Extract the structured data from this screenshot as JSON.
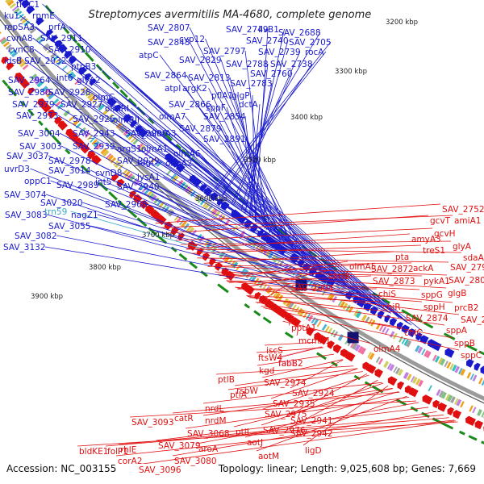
{
  "title": "Streptomyces avermitilis MA-4680, complete genome",
  "footer": {
    "accession": "Accession: NC_003155",
    "stats": "Topology: linear; Length: 9,025,608 bp; Genes: 7,669"
  },
  "kbp_ticks": [
    "3200 kbp",
    "3300 kbp",
    "3400 kbp",
    "3500 kbp",
    "3600 kbp",
    "3700 kbp",
    "3800 kbp",
    "3900 kbp"
  ],
  "colors": {
    "forward": "#1a1acd",
    "reverse": "#e01010",
    "rna": "#3aa8c8",
    "pseudo": "#f2a0c8",
    "ring": "#9a9a9a"
  },
  "labels_top": [
    "thrC1",
    "ku1",
    "rpmE",
    "repSA3",
    "prfA",
    "cvnA8",
    "SAV_2911",
    "cvnC8",
    "SAV_2910",
    "idsB",
    "SAV_2932",
    "ptpB3",
    "int6",
    "SAV_2964",
    "glyA2",
    "SAV_2980",
    "SAV_2928",
    "olmC",
    "SAV_2979",
    "SAV_2927",
    "olmRI",
    "SAV_2973",
    "SAV_2926",
    "olmRII",
    "SAV_3004",
    "SAV_2943",
    "SAV_2900",
    "olmA3",
    "SAV_3003",
    "SAV_2939",
    "argS1",
    "olmA1",
    "SAV_3037",
    "SAV_2978",
    "SAV_2929",
    "olmA6",
    "uvrD3",
    "SAV_3014",
    "cvnD8",
    "tagO",
    "olmA2",
    "int5",
    "lysA1",
    "oppC1",
    "SAV_2989",
    "SAV_2940",
    "SAV_3074",
    "SAV_3020",
    "nagZ1",
    "SAV_2968",
    "SAV_3083",
    "trn59",
    "SAV_3055",
    "SAV_3082",
    "SAV_3132",
    "SAV_2807",
    "cyp12",
    "SAV_2749",
    "ilvB1",
    "SAV_2688",
    "atpC",
    "SAV_2843",
    "SAV_2797",
    "SAV_2740",
    "SAV_2705",
    "SAV_2829",
    "SAV_2739",
    "rocA",
    "SAV_2864",
    "SAV_2788",
    "SAV_2738",
    "SAV_2760",
    "SAV_2813",
    "SAV_2783",
    "atpI",
    "argK2",
    "pflA1",
    "glgP",
    "SAV_2866",
    "sppF",
    "dctA",
    "olmA7",
    "SAV_2854",
    "SAV_2879",
    "SAV_2891"
  ],
  "labels_bottom": [
    "SAV_2752",
    "gcvT",
    "amiA1",
    "gcvH",
    "glyA",
    "sdaA",
    "amyA3",
    "pta",
    "treS1",
    "SAV_2799",
    "ackA",
    "SAV_2804",
    "olmA5",
    "SAV_2872",
    "pykA1",
    "glgB",
    "olmB",
    "SAV_2873",
    "sppG",
    "prcB2",
    "chiS",
    "sppH",
    "SAV_2828",
    "chiR",
    "SAV_2874",
    "sppA",
    "SAV_2904",
    "chiC",
    "sppB",
    "olmA4",
    "sppC",
    "pptA1",
    "mcmA1",
    "iscS",
    "trn3",
    "fabB2",
    "SAV_2924",
    "ftsW4",
    "SAV_2935",
    "kgd",
    "SAV_2974",
    "ptlB",
    "SAV_2941",
    "rsbW",
    "ptlA",
    "SAV_2975",
    "SAV_2976",
    "SAV_2942",
    "nrdL",
    "catR",
    "ptlI",
    "aotJ",
    "nrdM",
    "ligD",
    "SAV_3093",
    "SAV_3068",
    "aotM",
    "aroA",
    "SAV_3079",
    "bldKE1",
    "folP1",
    "rhlE",
    "corA2",
    "SAV_3080",
    "SAV_3096"
  ]
}
